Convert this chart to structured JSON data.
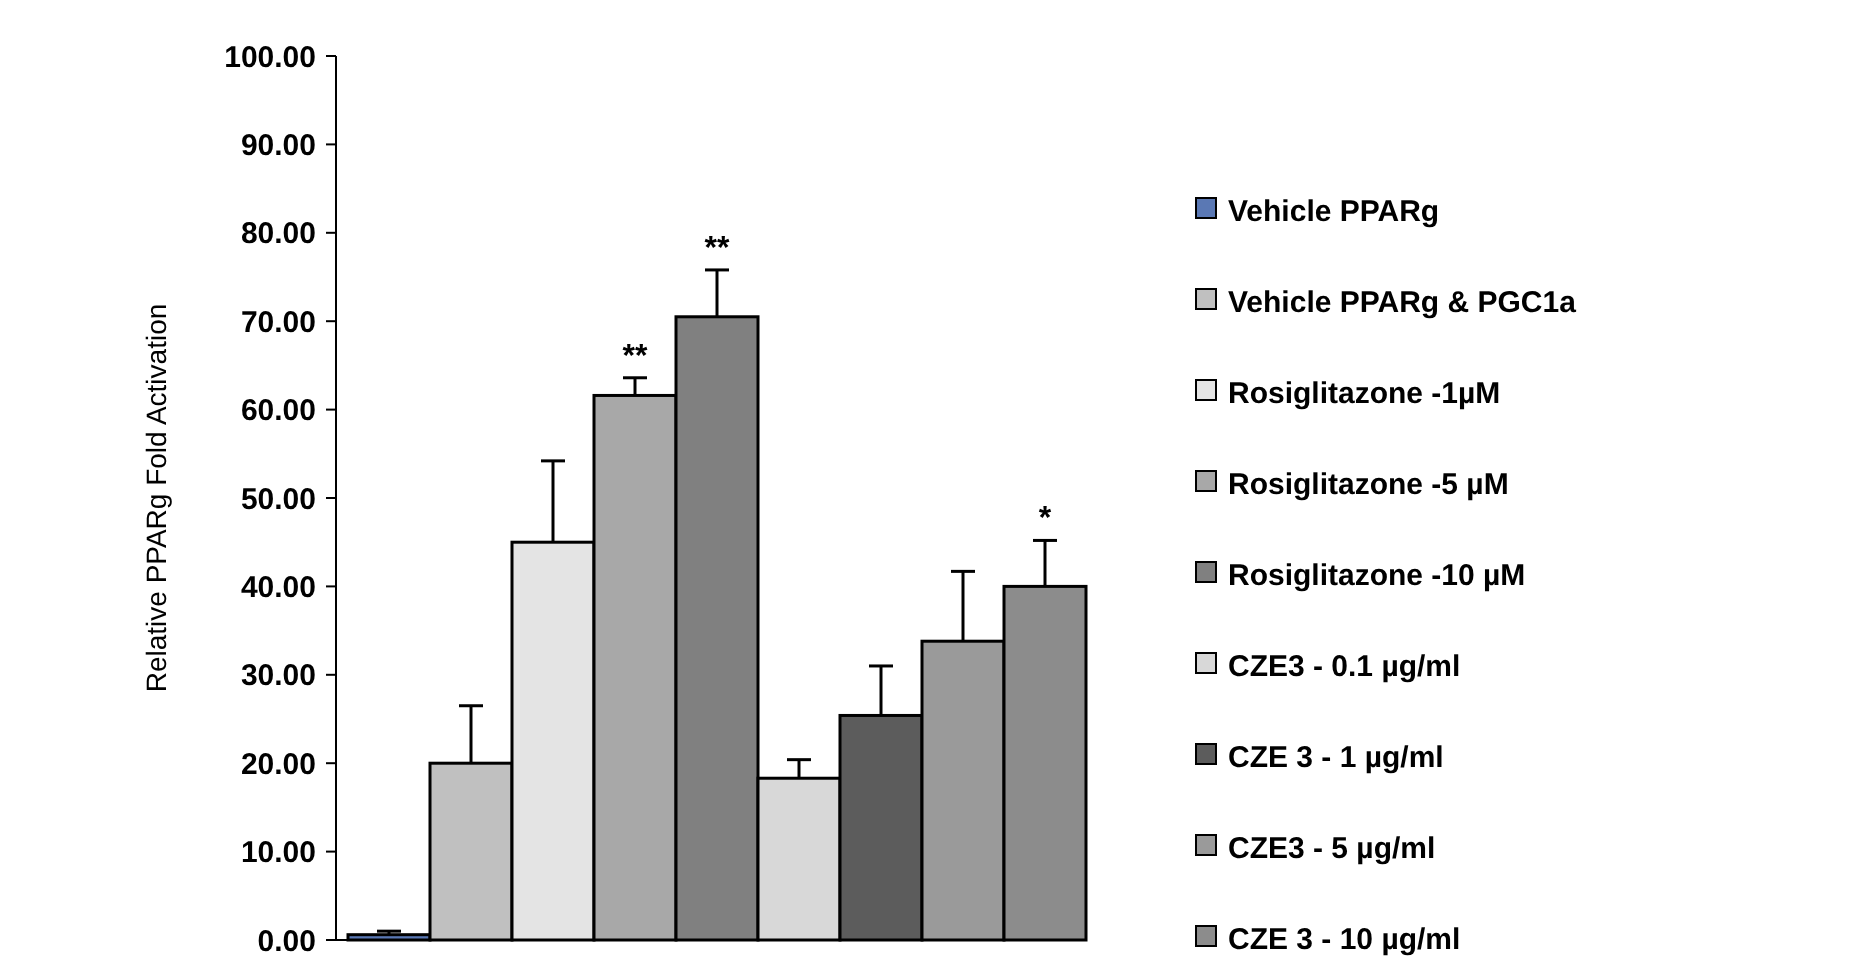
{
  "chart_data": {
    "type": "bar",
    "ylabel": "Relative PPARg Fold Activation",
    "categories": [
      null
    ],
    "ylim": [
      0,
      100
    ],
    "yticks": [
      {
        "value": 0,
        "label": "0.00"
      },
      {
        "value": 10,
        "label": "10.00"
      },
      {
        "value": 20,
        "label": "20.00"
      },
      {
        "value": 30,
        "label": "30.00"
      },
      {
        "value": 40,
        "label": "40.00"
      },
      {
        "value": 50,
        "label": "50.00"
      },
      {
        "value": 60,
        "label": "60.00"
      },
      {
        "value": 70,
        "label": "70.00"
      },
      {
        "value": 80,
        "label": "80.00"
      },
      {
        "value": 90,
        "label": "90.00"
      },
      {
        "value": 100,
        "label": "100.00"
      }
    ],
    "legend": "right",
    "grid": false,
    "series": [
      {
        "name": "Vehicle PPARg",
        "color": "#5a78b4",
        "values": [
          0.6
        ],
        "errors": [
          0.4
        ]
      },
      {
        "name": "Vehicle PPARg & PGC1a",
        "color": "#c0c0c0",
        "values": [
          20.0
        ],
        "errors": [
          6.5
        ]
      },
      {
        "name": "Rosiglitazone -1µM",
        "color": "#e4e4e4",
        "values": [
          45.0
        ],
        "errors": [
          9.2
        ]
      },
      {
        "name": "Rosiglitazone -5 µM",
        "color": "#a8a8a8",
        "values": [
          61.6
        ],
        "errors": [
          2.0
        ]
      },
      {
        "name": "Rosiglitazone -10 µM",
        "color": "#808080",
        "values": [
          70.5
        ],
        "errors": [
          5.3
        ]
      },
      {
        "name": "CZE3 - 0.1 µg/ml",
        "color": "#d8d8d8",
        "values": [
          18.3
        ],
        "errors": [
          2.1
        ]
      },
      {
        "name": "CZE 3 - 1 µg/ml",
        "color": "#5c5c5c",
        "values": [
          25.4
        ],
        "errors": [
          5.6
        ]
      },
      {
        "name": "CZE3 - 5 µg/ml",
        "color": "#9a9a9a",
        "values": [
          33.8
        ],
        "errors": [
          7.9
        ]
      },
      {
        "name": "CZE 3 - 10 µg/ml",
        "color": "#8c8c8c",
        "values": [
          40.0
        ],
        "errors": [
          5.2
        ]
      }
    ],
    "annotations": [
      {
        "text": "**",
        "y": 63.6
      },
      {
        "text": "**",
        "y": 75.8
      },
      {
        "text": "*",
        "y": 45.2
      }
    ]
  }
}
